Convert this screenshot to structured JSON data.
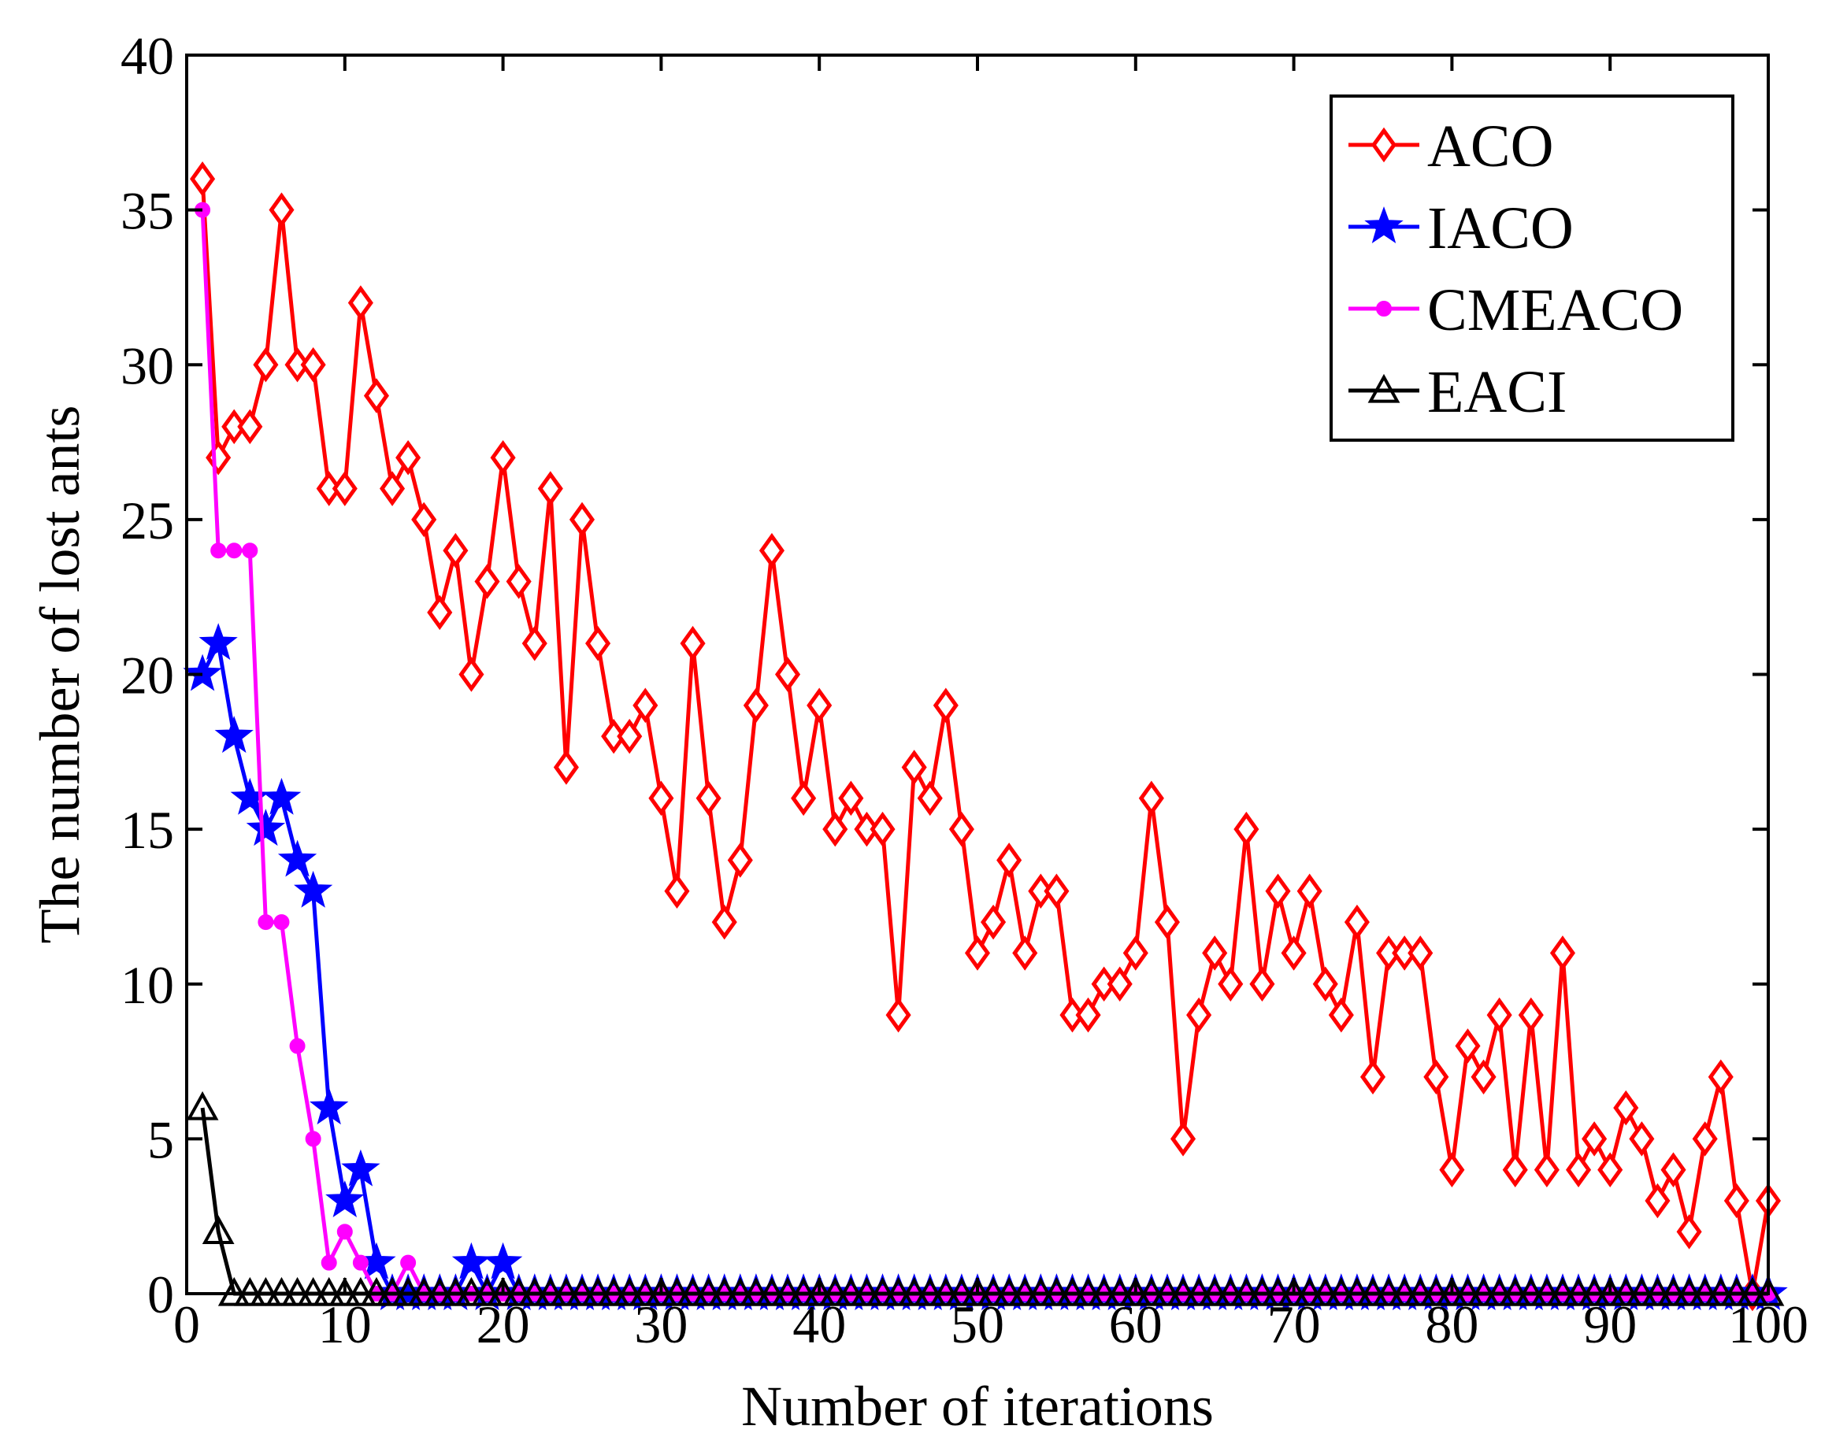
{
  "chart_data": {
    "type": "line",
    "title": "",
    "xlabel": "Number of iterations",
    "ylabel": "The number of lost ants",
    "xlim": [
      0,
      100
    ],
    "ylim": [
      0,
      40
    ],
    "xticks": [
      0,
      10,
      20,
      30,
      40,
      50,
      60,
      70,
      80,
      90,
      100
    ],
    "yticks": [
      0,
      5,
      10,
      15,
      20,
      25,
      30,
      35,
      40
    ],
    "grid": false,
    "legend_position": "top-right",
    "x": [
      1,
      2,
      3,
      4,
      5,
      6,
      7,
      8,
      9,
      10,
      11,
      12,
      13,
      14,
      15,
      16,
      17,
      18,
      19,
      20,
      21,
      22,
      23,
      24,
      25,
      26,
      27,
      28,
      29,
      30,
      31,
      32,
      33,
      34,
      35,
      36,
      37,
      38,
      39,
      40,
      41,
      42,
      43,
      44,
      45,
      46,
      47,
      48,
      49,
      50,
      51,
      52,
      53,
      54,
      55,
      56,
      57,
      58,
      59,
      60,
      61,
      62,
      63,
      64,
      65,
      66,
      67,
      68,
      69,
      70,
      71,
      72,
      73,
      74,
      75,
      76,
      77,
      78,
      79,
      80,
      81,
      82,
      83,
      84,
      85,
      86,
      87,
      88,
      89,
      90,
      91,
      92,
      93,
      94,
      95,
      96,
      97,
      98,
      99,
      100
    ],
    "series": [
      {
        "name": "ACO",
        "color": "#ff0000",
        "marker": "diamond",
        "values": [
          36,
          27,
          28,
          28,
          30,
          35,
          30,
          30,
          26,
          26,
          32,
          29,
          26,
          27,
          25,
          22,
          24,
          20,
          23,
          27,
          23,
          21,
          26,
          17,
          25,
          21,
          18,
          18,
          19,
          16,
          13,
          21,
          16,
          12,
          14,
          19,
          24,
          20,
          16,
          19,
          15,
          16,
          15,
          15,
          9,
          17,
          16,
          19,
          15,
          11,
          12,
          14,
          11,
          13,
          13,
          9,
          9,
          10,
          10,
          11,
          16,
          12,
          5,
          9,
          11,
          10,
          15,
          10,
          13,
          11,
          13,
          10,
          9,
          12,
          7,
          11,
          11,
          11,
          7,
          4,
          8,
          7,
          9,
          4,
          9,
          4,
          11,
          4,
          5,
          4,
          6,
          5,
          3,
          4,
          2,
          5,
          7,
          3,
          0,
          3
        ]
      },
      {
        "name": "IACO",
        "color": "#0000ff",
        "marker": "star",
        "values": [
          20,
          21,
          18,
          16,
          15,
          16,
          14,
          13,
          6,
          3,
          4,
          1,
          0,
          0,
          0,
          0,
          0,
          1,
          0,
          1,
          0,
          0,
          0,
          0,
          0,
          0,
          0,
          0,
          0,
          0,
          0,
          0,
          0,
          0,
          0,
          0,
          0,
          0,
          0,
          0,
          0,
          0,
          0,
          0,
          0,
          0,
          0,
          0,
          0,
          0,
          0,
          0,
          0,
          0,
          0,
          0,
          0,
          0,
          0,
          0,
          0,
          0,
          0,
          0,
          0,
          0,
          0,
          0,
          0,
          0,
          0,
          0,
          0,
          0,
          0,
          0,
          0,
          0,
          0,
          0,
          0,
          0,
          0,
          0,
          0,
          0,
          0,
          0,
          0,
          0,
          0,
          0,
          0,
          0,
          0,
          0,
          0,
          0,
          0,
          0
        ]
      },
      {
        "name": "CMEACO",
        "color": "#ff00ff",
        "marker": "dot",
        "values": [
          35,
          24,
          24,
          24,
          12,
          12,
          8,
          5,
          1,
          2,
          1,
          0,
          0,
          1,
          0,
          0,
          0,
          0,
          0,
          0,
          0,
          0,
          0,
          0,
          0,
          0,
          0,
          0,
          0,
          0,
          0,
          0,
          0,
          0,
          0,
          0,
          0,
          0,
          0,
          0,
          0,
          0,
          0,
          0,
          0,
          0,
          0,
          0,
          0,
          0,
          0,
          0,
          0,
          0,
          0,
          0,
          0,
          0,
          0,
          0,
          0,
          0,
          0,
          0,
          0,
          0,
          0,
          0,
          0,
          0,
          0,
          0,
          0,
          0,
          0,
          0,
          0,
          0,
          0,
          0,
          0,
          0,
          0,
          0,
          0,
          0,
          0,
          0,
          0,
          0,
          0,
          0,
          0,
          0,
          0,
          0,
          0,
          0,
          0,
          0
        ]
      },
      {
        "name": "EACI",
        "color": "#000000",
        "marker": "triangle",
        "values": [
          6,
          2,
          0,
          0,
          0,
          0,
          0,
          0,
          0,
          0,
          0,
          0,
          0,
          0,
          0,
          0,
          0,
          0,
          0,
          0,
          0,
          0,
          0,
          0,
          0,
          0,
          0,
          0,
          0,
          0,
          0,
          0,
          0,
          0,
          0,
          0,
          0,
          0,
          0,
          0,
          0,
          0,
          0,
          0,
          0,
          0,
          0,
          0,
          0,
          0,
          0,
          0,
          0,
          0,
          0,
          0,
          0,
          0,
          0,
          0,
          0,
          0,
          0,
          0,
          0,
          0,
          0,
          0,
          0,
          0,
          0,
          0,
          0,
          0,
          0,
          0,
          0,
          0,
          0,
          0,
          0,
          0,
          0,
          0,
          0,
          0,
          0,
          0,
          0,
          0,
          0,
          0,
          0,
          0,
          0,
          0,
          0,
          0,
          0,
          0
        ]
      }
    ]
  }
}
